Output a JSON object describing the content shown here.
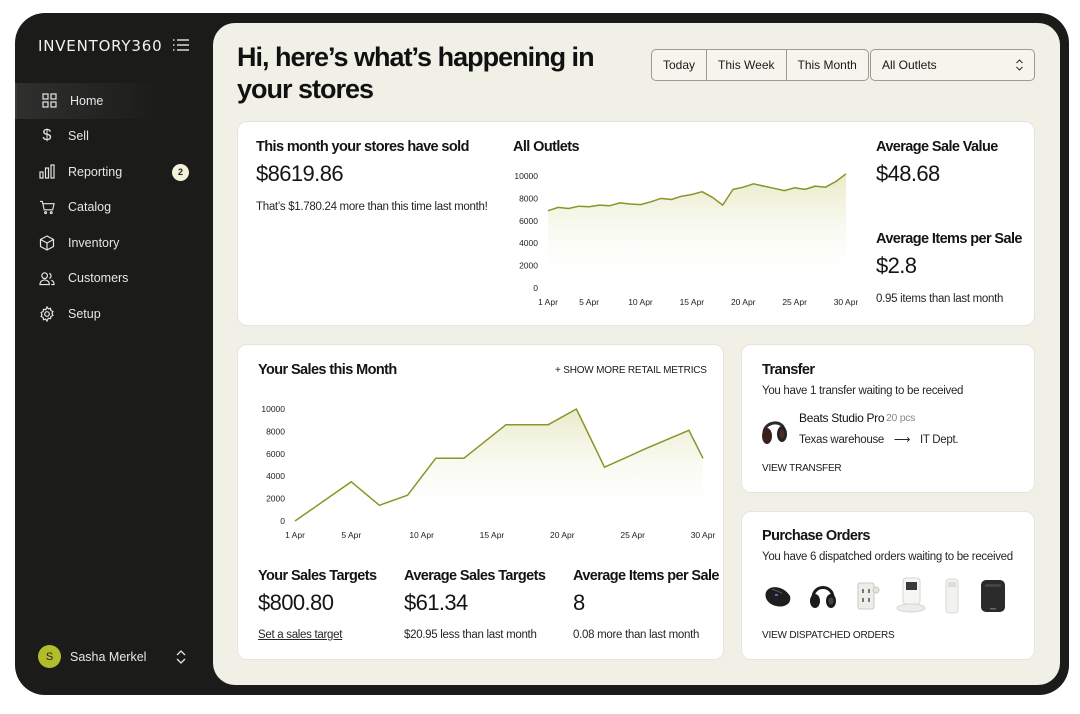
{
  "app": {
    "brand": "INVENTORY360"
  },
  "sidebar": {
    "items": [
      {
        "label": "Home",
        "icon": "grid-icon",
        "active": true
      },
      {
        "label": "Sell",
        "icon": "dollar-icon"
      },
      {
        "label": "Reporting",
        "icon": "bar-chart-icon",
        "badge": "2"
      },
      {
        "label": "Catalog",
        "icon": "cart-icon"
      },
      {
        "label": "Inventory",
        "icon": "box-icon"
      },
      {
        "label": "Customers",
        "icon": "users-icon"
      },
      {
        "label": "Setup",
        "icon": "gear-icon"
      }
    ],
    "user": {
      "initial": "S",
      "name": "Sasha Merkel"
    }
  },
  "header": {
    "title": "Hi, here’s what’s happening in your stores",
    "periods": [
      "Today",
      "This Week",
      "This Month"
    ],
    "outlet_select": "All Outlets"
  },
  "summary": {
    "sold_label": "This month your stores have sold",
    "sold_value": "$8619.86",
    "sold_note": "That’s $1.780.24 more than this time last month!",
    "avg_sale_label": "Average Sale Value",
    "avg_sale_value": "$48.68",
    "avg_items_label": "Average Items per Sale",
    "avg_items_value": "$2.8",
    "avg_items_note": "0.95 items than last month"
  },
  "outlets_chart_title": "All Outlets",
  "sales_card": {
    "title": "Your Sales this Month",
    "more_metrics": "+  SHOW MORE RETAIL METRICS",
    "targets_label": "Your Sales Targets",
    "targets_value": "$800.80",
    "targets_link": "Set a sales target",
    "avg_targets_label": "Average Sales Targets",
    "avg_targets_value": "$61.34",
    "avg_targets_note": "$20.95 less than last month",
    "avg_items_label": "Average Items per Sale",
    "avg_items_value": "8",
    "avg_items_note": "0.08 more  than last month"
  },
  "transfer": {
    "title": "Transfer",
    "subtitle": "You have 1 transfer waiting to be received",
    "product": "Beats Studio Pro",
    "qty": "20 pcs",
    "from": "Texas warehouse",
    "to": "IT Dept.",
    "link": "VIEW TRANSFER"
  },
  "purchase_orders": {
    "title": "Purchase Orders",
    "subtitle": "You have 6 dispatched orders waiting to be received",
    "items": [
      "mouse-icon",
      "headphones-icon",
      "outlet-icon",
      "robot-vacuum-icon",
      "air-purifier-icon",
      "speaker-icon"
    ],
    "link": "VIEW DISPATCHED ORDERS"
  },
  "colors": {
    "accent": "#8a9427",
    "sidebar": "#1b1b1a",
    "main_bg": "#f0f0e7",
    "avatar": "#b3bd2c"
  },
  "chart_data": [
    {
      "type": "area",
      "title": "All Outlets",
      "x": [
        "1 Apr",
        "2 Apr",
        "3 Apr",
        "4 Apr",
        "5 Apr",
        "6 Apr",
        "7 Apr",
        "8 Apr",
        "9 Apr",
        "10 Apr",
        "11 Apr",
        "12 Apr",
        "13 Apr",
        "14 Apr",
        "15 Apr",
        "16 Apr",
        "17 Apr",
        "18 Apr",
        "19 Apr",
        "20 Apr",
        "21 Apr",
        "22 Apr",
        "23 Apr",
        "24 Apr",
        "25 Apr",
        "26 Apr",
        "27 Apr",
        "28 Apr",
        "29 Apr",
        "30 Apr"
      ],
      "values": [
        6900,
        7200,
        7100,
        7300,
        7250,
        7400,
        7350,
        7600,
        7500,
        7450,
        7700,
        8000,
        7900,
        8200,
        8350,
        8600,
        8100,
        7400,
        8800,
        9000,
        9300,
        9100,
        8900,
        8700,
        8950,
        8800,
        9100,
        9000,
        9500,
        10200
      ],
      "xticks": [
        "1 Apr",
        "5 Apr",
        "10 Apr",
        "15 Apr",
        "20 Apr",
        "25 Apr",
        "30 Apr"
      ],
      "yticks": [
        0,
        2000,
        4000,
        6000,
        8000,
        10000
      ],
      "ylim": [
        0,
        10000
      ]
    },
    {
      "type": "area",
      "title": "Your Sales this Month",
      "x": [
        "1 Apr",
        "5 Apr",
        "7 Apr",
        "9 Apr",
        "11 Apr",
        "13 Apr",
        "16 Apr",
        "19 Apr",
        "21 Apr",
        "23 Apr",
        "26 Apr",
        "29 Apr",
        "30 Apr"
      ],
      "values": [
        0,
        3500,
        1400,
        2300,
        5600,
        5600,
        8600,
        8600,
        10000,
        4800,
        6500,
        8100,
        5600
      ],
      "xticks": [
        "1 Apr",
        "5 Apr",
        "10 Apr",
        "15 Apr",
        "20 Apr",
        "25 Apr",
        "30 Apr"
      ],
      "yticks": [
        0,
        2000,
        4000,
        6000,
        8000,
        10000
      ],
      "ylim": [
        0,
        10000
      ]
    }
  ]
}
